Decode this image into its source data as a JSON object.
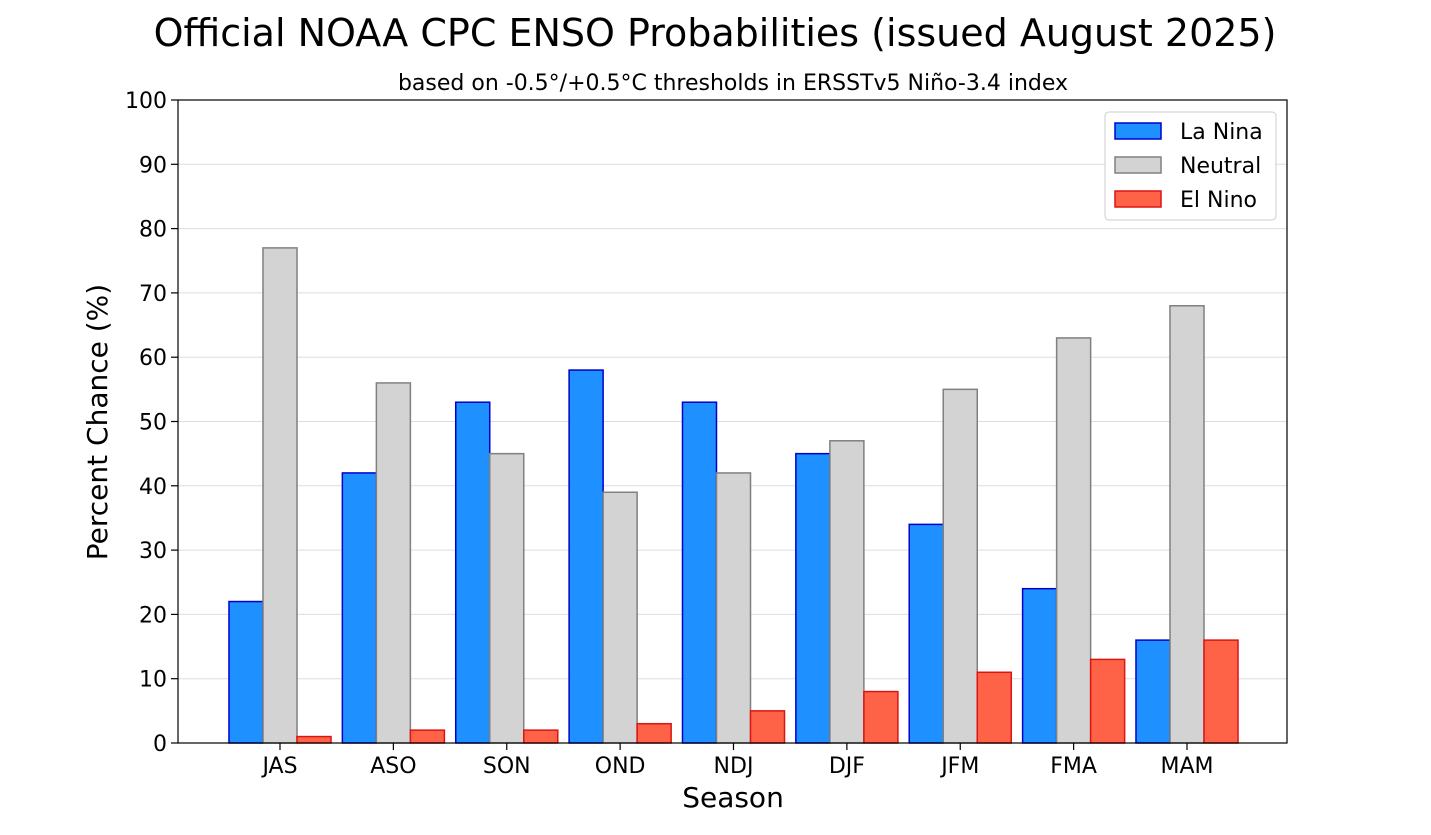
{
  "chart_data": {
    "type": "bar",
    "title": "Official NOAA CPC ENSO Probabilities (issued August 2025)",
    "subtitle": "based on -0.5°/+0.5°C thresholds in ERSSTv5 Niño-3.4 index",
    "xlabel": "Season",
    "ylabel": "Percent Chance (%)",
    "ylim": [
      0,
      100
    ],
    "yticks": [
      "0",
      "10",
      "20",
      "30",
      "40",
      "50",
      "60",
      "70",
      "80",
      "90",
      "100"
    ],
    "grid": "horizontal",
    "legend_position": "top-right",
    "categories": [
      "JAS",
      "ASO",
      "SON",
      "OND",
      "NDJ",
      "DJF",
      "JFM",
      "FMA",
      "MAM"
    ],
    "series": [
      {
        "name": "La Nina",
        "color": "#1e90ff",
        "edge": "#0000cd",
        "values": [
          22,
          42,
          53,
          58,
          53,
          45,
          34,
          24,
          16
        ]
      },
      {
        "name": "Neutral",
        "color": "#d3d3d3",
        "edge": "#808080",
        "values": [
          77,
          56,
          45,
          39,
          42,
          47,
          55,
          63,
          68
        ]
      },
      {
        "name": "El Nino",
        "color": "#ff6347",
        "edge": "#dc1414",
        "values": [
          1,
          2,
          2,
          3,
          5,
          8,
          11,
          13,
          16
        ]
      }
    ]
  }
}
